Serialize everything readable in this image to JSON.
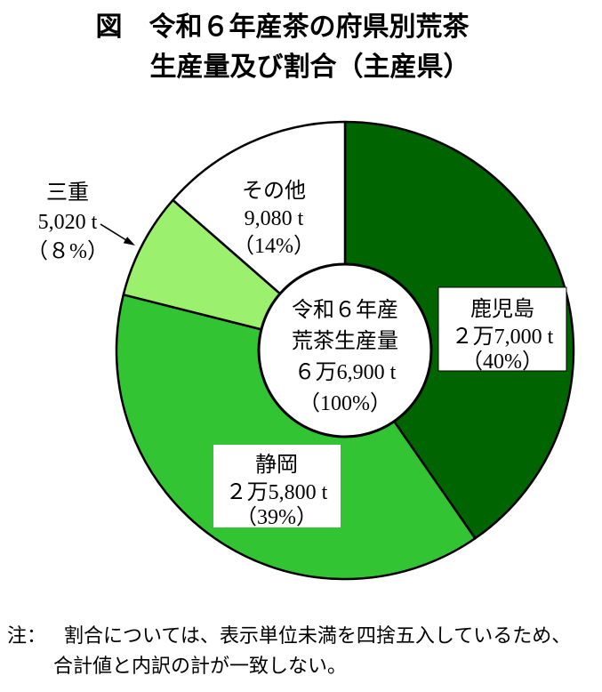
{
  "title": {
    "line1": "図　令和６年産茶の府県別荒茶",
    "line2": "生産量及び割合（主産県）"
  },
  "chart_data": {
    "type": "pie",
    "subtype": "donut",
    "title": "令和６年産茶の府県別荒茶生産量及び割合（主産県）",
    "unit": "t",
    "direction": "clockwise",
    "start_angle_deg": 0,
    "total": {
      "label_lines": [
        "令和６年産",
        "荒茶生産量",
        "６万6,900 t",
        "（100%）"
      ],
      "value_t": 66900,
      "percent": 100
    },
    "segments": [
      {
        "name": "鹿児島",
        "value_t": 27000,
        "percent": 40,
        "amount_label": "２万7,000 t",
        "percent_label": "（40%）",
        "color": "#006400"
      },
      {
        "name": "静岡",
        "value_t": 25800,
        "percent": 39,
        "amount_label": "２万5,800 t",
        "percent_label": "（39%）",
        "color": "#33C433"
      },
      {
        "name": "三重",
        "value_t": 5020,
        "percent": 8,
        "amount_label": "5,020 t",
        "percent_label": "（８%）",
        "color": "#9BF06D"
      },
      {
        "name": "その他",
        "value_t": 9080,
        "percent": 14,
        "amount_label": "9,080 t",
        "percent_label": "（14%）",
        "color": "#FFFFFF"
      }
    ]
  },
  "note": {
    "prefix": "注：",
    "line1": "割合については、表示単位未満を四捨五入しているため、",
    "line2": "合計値と内訳の計が一致しない。"
  }
}
